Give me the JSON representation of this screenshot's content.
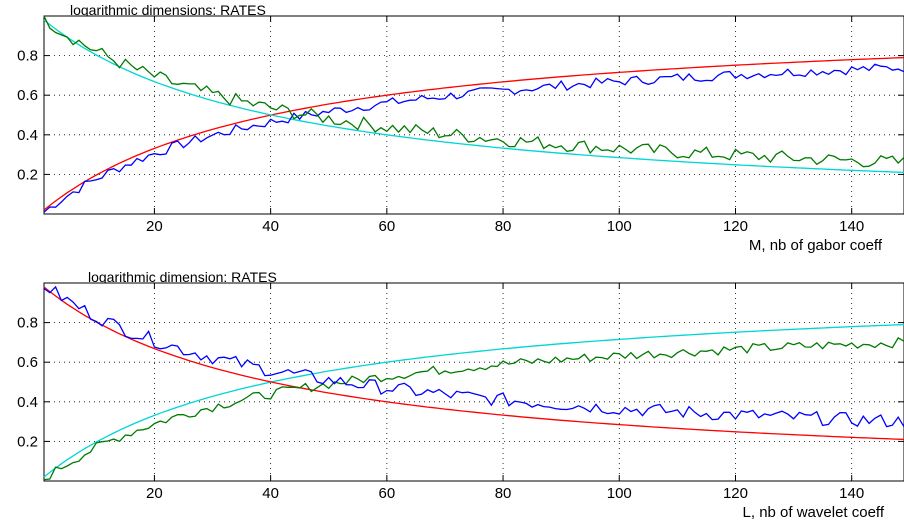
{
  "chart_data": [
    {
      "type": "line",
      "title": "logarithmic dimensions: RATES",
      "xlabel": "M, nb of gabor coeff",
      "ylabel": "",
      "xlim": [
        1,
        149
      ],
      "ylim": [
        0,
        1
      ],
      "xticks": [
        20,
        40,
        60,
        80,
        100,
        120,
        140
      ],
      "yticks": [
        0.2,
        0.4,
        0.6,
        0.8
      ],
      "grid": true,
      "series": [
        {
          "color": "#ff0000",
          "curve": "rising",
          "smooth": true,
          "x": [
            1,
            149
          ],
          "y_start": 0.02,
          "y_end": 0.79
        },
        {
          "color": "#00d5d5",
          "curve": "falling",
          "smooth": true,
          "x": [
            1,
            149
          ],
          "y_start": 0.98,
          "y_end": 0.21
        },
        {
          "color": "#0000ff",
          "curve": "rising",
          "smooth": false,
          "x": [
            1,
            149
          ],
          "y_start": 0.01,
          "y_end": 0.74
        },
        {
          "color": "#007a00",
          "curve": "falling",
          "smooth": false,
          "x": [
            1,
            149
          ],
          "y_start": 0.99,
          "y_end": 0.26
        }
      ]
    },
    {
      "type": "line",
      "title": "logarithmic dimension: RATES",
      "xlabel": "L, nb of wavelet coeff",
      "ylabel": "",
      "xlim": [
        1,
        149
      ],
      "ylim": [
        0,
        1
      ],
      "xticks": [
        20,
        40,
        60,
        80,
        100,
        120,
        140
      ],
      "yticks": [
        0.2,
        0.4,
        0.6,
        0.8
      ],
      "grid": true,
      "series": [
        {
          "color": "#00d5d5",
          "curve": "rising",
          "smooth": true,
          "x": [
            1,
            149
          ],
          "y_start": 0.02,
          "y_end": 0.79
        },
        {
          "color": "#ff0000",
          "curve": "falling",
          "smooth": true,
          "x": [
            1,
            149
          ],
          "y_start": 0.98,
          "y_end": 0.21
        },
        {
          "color": "#007a00",
          "curve": "rising",
          "smooth": false,
          "x": [
            1,
            149
          ],
          "y_start": 0.01,
          "y_end": 0.7
        },
        {
          "color": "#0000ff",
          "curve": "falling",
          "smooth": false,
          "x": [
            1,
            149
          ],
          "y_start": 0.99,
          "y_end": 0.3
        }
      ]
    }
  ]
}
